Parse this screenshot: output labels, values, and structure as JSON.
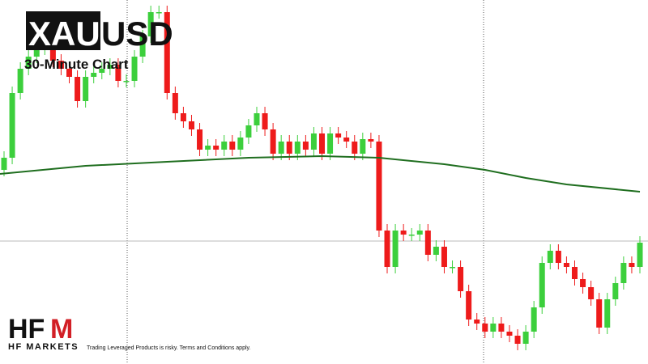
{
  "chart_data": {
    "type": "candlestick",
    "title_boxed": "XAU",
    "title_rest": "USD",
    "subtitle": "30-Minute Chart",
    "ylim": [
      0,
      450
    ],
    "up_color": "#3ccf3c",
    "down_color": "#ee1b1b",
    "open": [
      240,
      255,
      335,
      365,
      380,
      390,
      405,
      375,
      365,
      355,
      325,
      355,
      360,
      365,
      370,
      350,
      350,
      380,
      405,
      435,
      435,
      335,
      310,
      300,
      290,
      265,
      270,
      265,
      275,
      265,
      280,
      295,
      310,
      290,
      260,
      275,
      260,
      275,
      265,
      285,
      260,
      285,
      280,
      275,
      260,
      278,
      275,
      165,
      120,
      165,
      160,
      160,
      165,
      135,
      145,
      120,
      120,
      90,
      55,
      50,
      40,
      50,
      40,
      35,
      25,
      40,
      70,
      125,
      140,
      125,
      120,
      105,
      95,
      80,
      45,
      80,
      100,
      125,
      120
    ],
    "high": [
      263,
      343,
      373,
      388,
      398,
      413,
      413,
      383,
      373,
      363,
      363,
      368,
      373,
      378,
      378,
      358,
      388,
      413,
      443,
      443,
      443,
      343,
      318,
      308,
      298,
      278,
      278,
      283,
      283,
      288,
      303,
      318,
      318,
      298,
      283,
      283,
      283,
      283,
      293,
      293,
      293,
      293,
      288,
      283,
      286,
      286,
      283,
      173,
      173,
      173,
      168,
      173,
      173,
      153,
      153,
      128,
      128,
      98,
      63,
      58,
      58,
      58,
      48,
      43,
      48,
      78,
      133,
      148,
      148,
      133,
      128,
      113,
      103,
      88,
      88,
      108,
      133,
      133,
      158
    ],
    "low": [
      232,
      247,
      327,
      357,
      372,
      382,
      367,
      357,
      347,
      317,
      317,
      347,
      352,
      357,
      342,
      342,
      342,
      372,
      397,
      427,
      327,
      302,
      292,
      282,
      257,
      257,
      257,
      257,
      257,
      257,
      272,
      287,
      282,
      252,
      252,
      252,
      252,
      257,
      257,
      252,
      252,
      272,
      267,
      252,
      252,
      267,
      157,
      112,
      112,
      152,
      152,
      152,
      127,
      127,
      112,
      112,
      82,
      47,
      42,
      32,
      32,
      32,
      27,
      17,
      17,
      32,
      62,
      117,
      117,
      112,
      97,
      87,
      72,
      37,
      37,
      72,
      92,
      112,
      112
    ],
    "close": [
      255,
      335,
      365,
      380,
      390,
      405,
      375,
      365,
      355,
      325,
      355,
      360,
      365,
      370,
      350,
      350,
      380,
      405,
      435,
      435,
      335,
      310,
      300,
      290,
      265,
      270,
      265,
      275,
      265,
      280,
      295,
      310,
      290,
      260,
      275,
      260,
      275,
      265,
      285,
      260,
      285,
      280,
      275,
      260,
      278,
      275,
      165,
      120,
      165,
      160,
      160,
      165,
      135,
      145,
      120,
      120,
      90,
      55,
      50,
      40,
      50,
      40,
      35,
      25,
      40,
      70,
      125,
      140,
      125,
      120,
      105,
      95,
      80,
      45,
      80,
      100,
      125,
      120,
      150
    ],
    "moving_average": {
      "color": "#1f6e1f",
      "x": [
        0,
        10,
        20,
        30,
        39,
        46,
        54,
        59,
        64,
        69,
        78
      ],
      "values": [
        235,
        245,
        250,
        255,
        257,
        255,
        247,
        240,
        230,
        222,
        213
      ]
    },
    "last_price": 152
  },
  "brand": {
    "logo_black": "HF",
    "logo_red": "M",
    "name": "HF MARKETS",
    "disclaimer": "Trading Leveraged Products is risky. Terms and Conditions apply."
  }
}
